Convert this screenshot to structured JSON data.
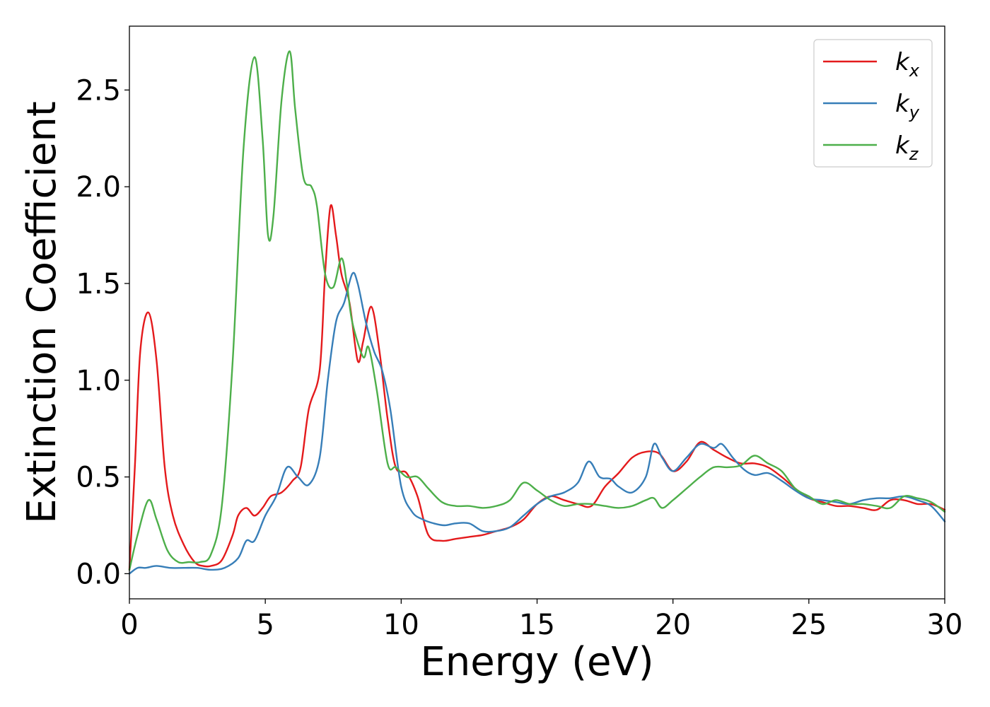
{
  "chart_data": {
    "type": "line",
    "title": "",
    "xlabel": "Energy (eV)",
    "ylabel": "Extinction Coefficient",
    "xlim": [
      0,
      30
    ],
    "ylim": [
      -0.13,
      2.83
    ],
    "xticks": [
      0,
      5,
      10,
      15,
      20,
      25,
      30
    ],
    "xtick_labels": [
      "0",
      "5",
      "10",
      "15",
      "20",
      "25",
      "30"
    ],
    "yticks": [
      0.0,
      0.5,
      1.0,
      1.5,
      2.0,
      2.5
    ],
    "ytick_labels": [
      "0.0",
      "0.5",
      "1.0",
      "1.5",
      "2.0",
      "2.5"
    ],
    "grid": false,
    "legend_position": "top-right",
    "series": [
      {
        "name": "k_x",
        "label_main": "k",
        "label_sub": "x",
        "color": "#e41a1c",
        "x": [
          0,
          0.2,
          0.4,
          0.7,
          1.0,
          1.3,
          1.6,
          2.0,
          2.4,
          2.7,
          3.0,
          3.4,
          3.8,
          4.0,
          4.3,
          4.6,
          4.9,
          5.2,
          5.6,
          6.0,
          6.3,
          6.6,
          7.0,
          7.2,
          7.4,
          7.6,
          7.8,
          8.1,
          8.4,
          8.6,
          8.9,
          9.2,
          9.5,
          9.8,
          10.2,
          10.6,
          11.0,
          11.5,
          12.0,
          12.5,
          13.0,
          13.5,
          14.0,
          14.5,
          15.0,
          15.5,
          16.0,
          16.5,
          17.0,
          17.5,
          18.0,
          18.5,
          19.0,
          19.5,
          20.0,
          20.5,
          21.0,
          21.5,
          22.0,
          22.5,
          23.0,
          23.5,
          24.0,
          24.5,
          25.0,
          25.5,
          26.0,
          26.5,
          27.0,
          27.5,
          28.0,
          28.5,
          29.0,
          29.5,
          30.0
        ],
        "y": [
          0.02,
          0.55,
          1.15,
          1.35,
          1.1,
          0.55,
          0.3,
          0.15,
          0.06,
          0.04,
          0.04,
          0.07,
          0.2,
          0.3,
          0.34,
          0.3,
          0.34,
          0.4,
          0.42,
          0.48,
          0.55,
          0.85,
          1.05,
          1.55,
          1.9,
          1.75,
          1.55,
          1.4,
          1.1,
          1.2,
          1.38,
          1.15,
          0.8,
          0.55,
          0.52,
          0.4,
          0.2,
          0.17,
          0.18,
          0.19,
          0.2,
          0.22,
          0.24,
          0.28,
          0.36,
          0.4,
          0.38,
          0.36,
          0.35,
          0.45,
          0.52,
          0.6,
          0.63,
          0.62,
          0.53,
          0.58,
          0.68,
          0.64,
          0.6,
          0.57,
          0.57,
          0.55,
          0.5,
          0.44,
          0.39,
          0.37,
          0.35,
          0.35,
          0.34,
          0.33,
          0.38,
          0.38,
          0.36,
          0.36,
          0.33
        ]
      },
      {
        "name": "k_y",
        "label_main": "k",
        "label_sub": "y",
        "color": "#377eb8",
        "x": [
          0,
          0.3,
          0.6,
          1.0,
          1.5,
          2.0,
          2.5,
          3.0,
          3.5,
          4.0,
          4.3,
          4.6,
          5.0,
          5.4,
          5.8,
          6.2,
          6.6,
          7.0,
          7.3,
          7.6,
          7.9,
          8.2,
          8.4,
          8.7,
          9.0,
          9.3,
          9.6,
          10.0,
          10.4,
          10.8,
          11.2,
          11.6,
          12.0,
          12.5,
          13.0,
          13.5,
          14.0,
          14.5,
          15.0,
          15.5,
          16.0,
          16.5,
          16.9,
          17.3,
          17.7,
          18.0,
          18.5,
          19.0,
          19.3,
          19.6,
          20.0,
          20.5,
          21.0,
          21.5,
          21.8,
          22.2,
          22.6,
          23.0,
          23.5,
          24.0,
          24.5,
          25.0,
          25.5,
          26.0,
          26.5,
          27.0,
          27.5,
          28.0,
          28.5,
          29.0,
          29.5,
          30.0
        ],
        "y": [
          0.0,
          0.03,
          0.03,
          0.04,
          0.03,
          0.03,
          0.03,
          0.02,
          0.03,
          0.08,
          0.17,
          0.17,
          0.3,
          0.4,
          0.55,
          0.5,
          0.46,
          0.6,
          1.0,
          1.3,
          1.4,
          1.55,
          1.5,
          1.3,
          1.15,
          1.05,
          0.85,
          0.45,
          0.32,
          0.28,
          0.26,
          0.25,
          0.26,
          0.26,
          0.22,
          0.22,
          0.24,
          0.3,
          0.36,
          0.4,
          0.42,
          0.47,
          0.58,
          0.5,
          0.49,
          0.45,
          0.42,
          0.5,
          0.67,
          0.6,
          0.53,
          0.6,
          0.67,
          0.65,
          0.67,
          0.6,
          0.54,
          0.51,
          0.52,
          0.48,
          0.43,
          0.39,
          0.38,
          0.37,
          0.36,
          0.38,
          0.39,
          0.39,
          0.4,
          0.38,
          0.35,
          0.27
        ]
      },
      {
        "name": "k_z",
        "label_main": "k",
        "label_sub": "z",
        "color": "#4daf4a",
        "x": [
          0,
          0.3,
          0.7,
          1.0,
          1.4,
          1.8,
          2.2,
          2.6,
          3.0,
          3.4,
          3.8,
          4.2,
          4.6,
          4.9,
          5.1,
          5.3,
          5.6,
          5.9,
          6.1,
          6.4,
          6.7,
          6.9,
          7.2,
          7.5,
          7.8,
          8.0,
          8.2,
          8.6,
          8.8,
          9.1,
          9.5,
          9.8,
          10.2,
          10.6,
          11.0,
          11.5,
          12.0,
          12.5,
          13.0,
          13.5,
          14.0,
          14.5,
          15.0,
          15.5,
          16.0,
          16.5,
          17.0,
          17.5,
          18.0,
          18.5,
          19.0,
          19.3,
          19.6,
          20.0,
          20.5,
          21.0,
          21.5,
          22.0,
          22.5,
          23.0,
          23.5,
          24.0,
          24.5,
          25.0,
          25.5,
          26.0,
          26.5,
          27.0,
          27.5,
          28.0,
          28.5,
          29.0,
          29.5,
          30.0
        ],
        "y": [
          0.02,
          0.2,
          0.38,
          0.28,
          0.12,
          0.06,
          0.06,
          0.06,
          0.1,
          0.35,
          1.1,
          2.2,
          2.67,
          2.25,
          1.75,
          1.85,
          2.45,
          2.7,
          2.4,
          2.05,
          2.0,
          1.9,
          1.55,
          1.48,
          1.63,
          1.5,
          1.3,
          1.12,
          1.17,
          0.95,
          0.57,
          0.55,
          0.5,
          0.5,
          0.44,
          0.37,
          0.35,
          0.35,
          0.34,
          0.35,
          0.38,
          0.47,
          0.43,
          0.38,
          0.35,
          0.36,
          0.36,
          0.35,
          0.34,
          0.35,
          0.38,
          0.39,
          0.34,
          0.38,
          0.44,
          0.5,
          0.55,
          0.55,
          0.56,
          0.61,
          0.57,
          0.53,
          0.44,
          0.4,
          0.36,
          0.38,
          0.36,
          0.36,
          0.35,
          0.34,
          0.4,
          0.39,
          0.37,
          0.32
        ]
      }
    ]
  }
}
